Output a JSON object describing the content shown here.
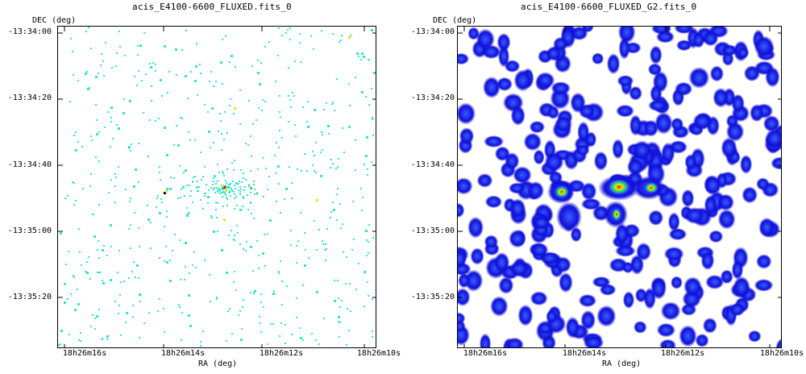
{
  "panels": [
    {
      "title": "acis_E4100-6600_FLUXED.fits_0",
      "y_axis_title": "DEC (deg)",
      "x_axis_title": "RA (deg)",
      "dec_ticks": [
        "-13:34:00",
        "-13:34:20",
        "-13:34:40",
        "-13:35:00",
        "-13:35:20"
      ],
      "ra_ticks": [
        "18h26m16s",
        "18h26m14s",
        "18h26m12s",
        "18h26m10s"
      ]
    },
    {
      "title": "acis_E4100-6600_FLUXED_G2.fits_0",
      "y_axis_title": "DEC (deg)",
      "x_axis_title": "RA (deg)",
      "dec_ticks": [
        "-13:34:00",
        "-13:34:20",
        "-13:34:40",
        "-13:35:00",
        "-13:35:20"
      ],
      "ra_ticks": [
        "18h26m16s",
        "18h26m14s",
        "18h26m12s",
        "18h26m10s"
      ]
    }
  ],
  "colors": {
    "raw_pixel": "#2ee6d0",
    "blob_outer": "#1010d8",
    "blob_mid": "#3a5cff",
    "hot_yellow": "#e8e800",
    "hot_red": "#e00000",
    "hot_green": "#20e060"
  }
}
